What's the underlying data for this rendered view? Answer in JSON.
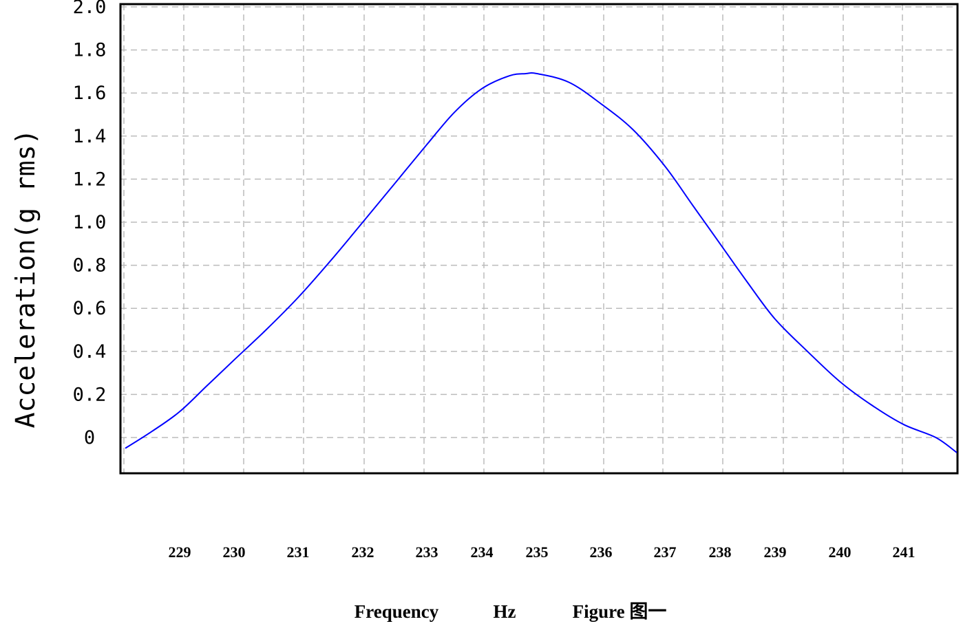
{
  "chart_data": {
    "type": "line",
    "ylabel": "Acceleration(g rms)",
    "xlabel_parts": [
      "Frequency",
      "Hz",
      "Figure 图一"
    ],
    "y_ticks": [
      "2.0",
      "1.8",
      "1.6",
      "1.4",
      "1.2",
      "1.0",
      "0.8",
      "0.6",
      "0.4",
      "0.2",
      "0"
    ],
    "x_ticks": [
      "229",
      "230",
      "231",
      "232",
      "233",
      "234",
      "235",
      "236",
      "237",
      "238",
      "239",
      "240",
      "241"
    ],
    "ylim": [
      -0.17,
      2.05
    ],
    "grid": true,
    "line_color": "#0000ff",
    "series": [
      {
        "x": [
          228.0,
          228.5,
          229.0,
          229.5,
          230.0,
          230.5,
          231.0,
          231.5,
          232.0,
          232.5,
          233.0,
          233.5,
          234.0,
          234.5,
          234.8,
          235.0,
          235.5,
          236.0,
          236.5,
          237.0,
          237.5,
          238.0,
          238.5,
          239.0,
          239.5,
          240.0,
          240.5,
          241.0,
          241.5,
          241.95
        ],
        "y": [
          -0.05,
          0.03,
          0.12,
          0.24,
          0.36,
          0.5,
          0.65,
          0.82,
          1.0,
          1.18,
          1.36,
          1.51,
          1.62,
          1.68,
          1.69,
          1.69,
          1.65,
          1.55,
          1.43,
          1.26,
          1.08,
          0.9,
          0.72,
          0.55,
          0.4,
          0.26,
          0.15,
          0.06,
          0.0,
          -0.07
        ]
      }
    ]
  }
}
